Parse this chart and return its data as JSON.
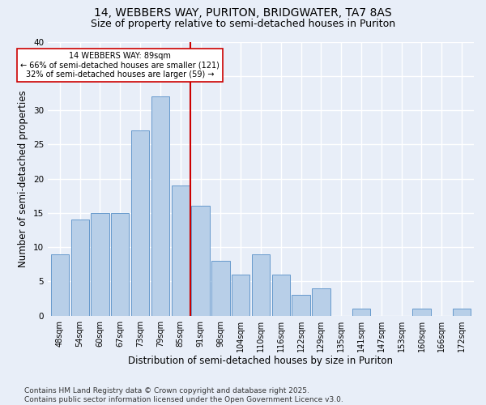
{
  "title1": "14, WEBBERS WAY, PURITON, BRIDGWATER, TA7 8AS",
  "title2": "Size of property relative to semi-detached houses in Puriton",
  "xlabel": "Distribution of semi-detached houses by size in Puriton",
  "ylabel": "Number of semi-detached properties",
  "categories": [
    "48sqm",
    "54sqm",
    "60sqm",
    "67sqm",
    "73sqm",
    "79sqm",
    "85sqm",
    "91sqm",
    "98sqm",
    "104sqm",
    "110sqm",
    "116sqm",
    "122sqm",
    "129sqm",
    "135sqm",
    "141sqm",
    "147sqm",
    "153sqm",
    "160sqm",
    "166sqm",
    "172sqm"
  ],
  "values": [
    9,
    14,
    15,
    15,
    27,
    32,
    19,
    16,
    8,
    6,
    9,
    6,
    3,
    4,
    0,
    1,
    0,
    0,
    1,
    0,
    1
  ],
  "bar_color": "#b8cfe8",
  "bar_edge_color": "#6699cc",
  "bar_linewidth": 0.7,
  "vline_color": "#cc0000",
  "annotation_title": "14 WEBBERS WAY: 89sqm",
  "annotation_line1": "← 66% of semi-detached houses are smaller (121)",
  "annotation_line2": "32% of semi-detached houses are larger (59) →",
  "annotation_box_color": "#ffffff",
  "annotation_box_edge": "#cc0000",
  "ylim": [
    0,
    40
  ],
  "yticks": [
    0,
    5,
    10,
    15,
    20,
    25,
    30,
    35,
    40
  ],
  "footnote1": "Contains HM Land Registry data © Crown copyright and database right 2025.",
  "footnote2": "Contains public sector information licensed under the Open Government Licence v3.0.",
  "bg_color": "#e8eef8",
  "grid_color": "#ffffff",
  "title1_fontsize": 10,
  "title2_fontsize": 9,
  "tick_fontsize": 7,
  "label_fontsize": 8.5,
  "footnote_fontsize": 6.5
}
